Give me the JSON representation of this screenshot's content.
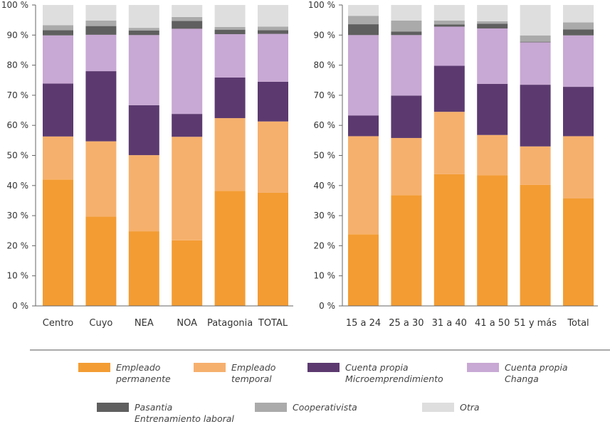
{
  "colors": {
    "Empleado permanente": "#f39c33",
    "Empleado temporal": "#f6b06d",
    "Cuenta propia Microemprendimiento": "#5c3a70",
    "Cuenta propia Changa": "#c8a8d4",
    "Pasantia Entrenamiento laboral": "#5f5f5f",
    "Cooperativista": "#aaaaaa",
    "Otra": "#dedede"
  },
  "legend": [
    {
      "key": "Empleado permanente",
      "line1": "Empleado",
      "line2": "permanente"
    },
    {
      "key": "Empleado temporal",
      "line1": "Empleado",
      "line2": "temporal"
    },
    {
      "key": "Cuenta propia Microemprendimiento",
      "line1": "Cuenta propia",
      "line2": "Microemprendimiento"
    },
    {
      "key": "Cuenta propia Changa",
      "line1": "Cuenta propia",
      "line2": "Changa"
    },
    {
      "key": "Pasantia Entrenamiento laboral",
      "line1": "Pasantia",
      "line2": "Entrenamiento laboral"
    },
    {
      "key": "Cooperativista",
      "line1": "Cooperativista",
      "line2": ""
    },
    {
      "key": "Otra",
      "line1": "Otra",
      "line2": ""
    }
  ],
  "chart_data": [
    {
      "type": "bar",
      "stacked": true,
      "ylim": [
        0,
        100
      ],
      "yticks": [
        "0 %",
        "10 %",
        "20 %",
        "30 %",
        "40 %",
        "50 %",
        "60 %",
        "70 %",
        "80 %",
        "90 %",
        "100 %"
      ],
      "categories": [
        "Centro",
        "Cuyo",
        "NEA",
        "NOA",
        "Patagonia",
        "TOTAL"
      ],
      "series": [
        {
          "name": "Empleado permanente",
          "values": [
            42.0,
            29.7,
            24.8,
            21.8,
            38.2,
            37.6
          ]
        },
        {
          "name": "Empleado temporal",
          "values": [
            14.3,
            25.0,
            25.3,
            34.4,
            24.2,
            23.7
          ]
        },
        {
          "name": "Cuenta propia Microemprendimiento",
          "values": [
            17.6,
            23.3,
            16.6,
            7.6,
            13.5,
            13.2
          ]
        },
        {
          "name": "Cuenta propia Changa",
          "values": [
            16.0,
            12.1,
            23.3,
            28.3,
            14.4,
            15.9
          ]
        },
        {
          "name": "Pasantia Entrenamiento laboral",
          "values": [
            1.7,
            2.9,
            1.5,
            2.6,
            1.5,
            1.2
          ]
        },
        {
          "name": "Cooperativista",
          "values": [
            1.7,
            1.8,
            0.9,
            1.3,
            0.9,
            1.2
          ]
        },
        {
          "name": "Otra",
          "values": [
            6.7,
            5.2,
            7.6,
            4.0,
            7.3,
            7.2
          ]
        }
      ]
    },
    {
      "type": "bar",
      "stacked": true,
      "ylim": [
        0,
        100
      ],
      "yticks": [
        "0 %",
        "10 %",
        "20 %",
        "30 %",
        "40 %",
        "50 %",
        "60 %",
        "70 %",
        "80 %",
        "90 %",
        "100 %"
      ],
      "categories": [
        "15 a 24",
        "25 a 30",
        "31 a 40",
        "41 a 50",
        "51 y más",
        "Total"
      ],
      "series": [
        {
          "name": "Empleado permanente",
          "values": [
            23.8,
            36.8,
            43.8,
            43.4,
            40.2,
            35.7
          ]
        },
        {
          "name": "Empleado temporal",
          "values": [
            32.6,
            19.0,
            20.7,
            13.4,
            12.8,
            20.7
          ]
        },
        {
          "name": "Cuenta propia Microemprendimiento",
          "values": [
            6.9,
            14.1,
            15.3,
            17.0,
            20.5,
            16.4
          ]
        },
        {
          "name": "Cuenta propia Changa",
          "values": [
            26.7,
            20.1,
            13.0,
            18.4,
            14.1,
            17.1
          ]
        },
        {
          "name": "Pasantia Entrenamiento laboral",
          "values": [
            3.6,
            1.2,
            0.7,
            1.6,
            0.2,
            2.0
          ]
        },
        {
          "name": "Cooperativista",
          "values": [
            2.8,
            3.6,
            1.3,
            0.8,
            2.1,
            2.3
          ]
        },
        {
          "name": "Otra",
          "values": [
            3.6,
            5.2,
            5.2,
            5.4,
            10.1,
            5.8
          ]
        }
      ]
    }
  ]
}
